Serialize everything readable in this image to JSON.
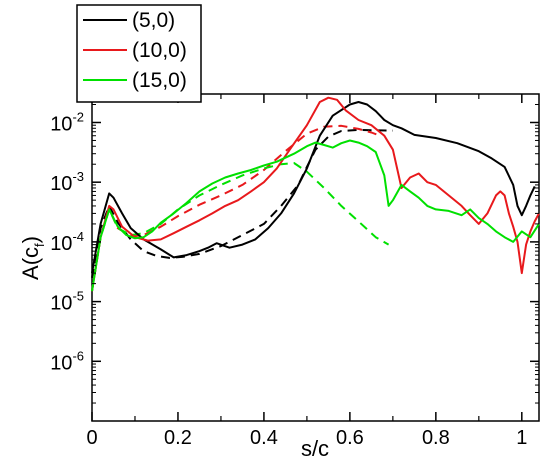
{
  "chart_data": {
    "type": "line",
    "title": "",
    "xlabel": "s/c",
    "ylabel_base": "A(c",
    "ylabel_sub": "f",
    "ylabel_close": ")",
    "y_scale": "log",
    "xlim": [
      0,
      1.04
    ],
    "ylim": [
      1e-07,
      0.03
    ],
    "x_ticks": [
      {
        "value": 0,
        "label": "0"
      },
      {
        "value": 0.2,
        "label": "0.2"
      },
      {
        "value": 0.4,
        "label": "0.4"
      },
      {
        "value": 0.6,
        "label": "0.6"
      },
      {
        "value": 0.8,
        "label": "0.8"
      },
      {
        "value": 1,
        "label": "1"
      }
    ],
    "y_ticks": [
      {
        "value": 1e-06,
        "base": "10",
        "exp": "-6"
      },
      {
        "value": 1e-05,
        "base": "10",
        "exp": "-5"
      },
      {
        "value": 0.0001,
        "base": "10",
        "exp": "-4"
      },
      {
        "value": 0.001,
        "base": "10",
        "exp": "-3"
      },
      {
        "value": 0.01,
        "base": "10",
        "exp": "-2"
      }
    ],
    "legend_position": "top-left, outside plot",
    "series": [
      {
        "name": "(5,0)",
        "color": "#000000",
        "dash": "solid",
        "in_legend": true,
        "x": [
          0,
          0.02,
          0.04,
          0.05,
          0.07,
          0.09,
          0.12,
          0.16,
          0.19,
          0.22,
          0.25,
          0.27,
          0.29,
          0.32,
          0.35,
          0.38,
          0.41,
          0.44,
          0.47,
          0.5,
          0.53,
          0.56,
          0.6,
          0.62,
          0.64,
          0.66,
          0.68,
          0.7,
          0.72,
          0.75,
          0.8,
          0.85,
          0.9,
          0.93,
          0.96,
          0.98,
          0.99,
          1.0,
          1.01,
          1.02,
          1.03
        ],
        "y": [
          3e-05,
          0.0002,
          0.00065,
          0.00055,
          0.0003,
          0.00017,
          0.00011,
          7.5e-05,
          5.5e-05,
          6e-05,
          7e-05,
          8e-05,
          9.5e-05,
          8e-05,
          9e-05,
          0.00011,
          0.00017,
          0.0003,
          0.00065,
          0.0017,
          0.006,
          0.013,
          0.02,
          0.022,
          0.02,
          0.0155,
          0.011,
          0.009,
          0.008,
          0.0062,
          0.0055,
          0.0045,
          0.0033,
          0.0025,
          0.0018,
          0.0009,
          0.0004,
          0.00028,
          0.0004,
          0.0006,
          0.00085
        ]
      },
      {
        "name": "(10,0)",
        "color": "#e8191c",
        "dash": "solid",
        "in_legend": true,
        "x": [
          0,
          0.02,
          0.04,
          0.05,
          0.07,
          0.1,
          0.13,
          0.16,
          0.19,
          0.22,
          0.25,
          0.28,
          0.31,
          0.34,
          0.37,
          0.4,
          0.43,
          0.46,
          0.5,
          0.53,
          0.55,
          0.57,
          0.59,
          0.62,
          0.65,
          0.68,
          0.7,
          0.72,
          0.74,
          0.76,
          0.78,
          0.8,
          0.83,
          0.86,
          0.88,
          0.9,
          0.92,
          0.94,
          0.95,
          0.96,
          0.97,
          0.98,
          0.99,
          1.0,
          1.01,
          1.02,
          1.03,
          1.04
        ],
        "y": [
          1.5e-05,
          0.00012,
          0.0004,
          0.00035,
          0.00018,
          0.00012,
          0.000105,
          0.00011,
          0.00014,
          0.00018,
          0.00023,
          0.0003,
          0.0004,
          0.0005,
          0.0007,
          0.001,
          0.0017,
          0.0035,
          0.009,
          0.022,
          0.026,
          0.024,
          0.016,
          0.011,
          0.009,
          0.006,
          0.0035,
          0.0008,
          0.0012,
          0.0014,
          0.001,
          0.0009,
          0.0006,
          0.0004,
          0.00028,
          0.0002,
          0.0003,
          0.0006,
          0.0007,
          0.0006,
          0.0003,
          0.00018,
          0.0001,
          3e-05,
          9e-05,
          0.00015,
          0.00022,
          0.0003
        ]
      },
      {
        "name": "(15,0)",
        "color": "#00e000",
        "dash": "solid",
        "in_legend": true,
        "x": [
          0,
          0.02,
          0.04,
          0.06,
          0.08,
          0.1,
          0.12,
          0.14,
          0.16,
          0.19,
          0.22,
          0.25,
          0.28,
          0.31,
          0.34,
          0.37,
          0.4,
          0.43,
          0.47,
          0.5,
          0.52,
          0.54,
          0.56,
          0.58,
          0.6,
          0.62,
          0.64,
          0.66,
          0.68,
          0.69,
          0.7,
          0.72,
          0.74,
          0.76,
          0.78,
          0.8,
          0.83,
          0.86,
          0.88,
          0.9,
          0.92,
          0.94,
          0.96,
          0.98,
          1.0,
          1.02,
          1.04
        ],
        "y": [
          1.5e-05,
          0.00012,
          0.00035,
          0.00018,
          0.00013,
          0.000115,
          0.00012,
          0.00015,
          0.00021,
          0.0003,
          0.00045,
          0.0007,
          0.00095,
          0.0012,
          0.0014,
          0.0016,
          0.0019,
          0.0022,
          0.003,
          0.004,
          0.0046,
          0.0042,
          0.0038,
          0.0045,
          0.005,
          0.0046,
          0.004,
          0.0032,
          0.0013,
          0.0004,
          0.0005,
          0.0009,
          0.0007,
          0.00055,
          0.0004,
          0.00035,
          0.00033,
          0.00028,
          0.00035,
          0.00025,
          0.0002,
          0.00015,
          0.00012,
          0.0001,
          0.00015,
          0.00012,
          0.0002
        ]
      },
      {
        "name": "",
        "color": "#000000",
        "dash": "dashed",
        "in_legend": false,
        "x": [
          0,
          0.02,
          0.04,
          0.06,
          0.09,
          0.12,
          0.15,
          0.18,
          0.21,
          0.25,
          0.3,
          0.35,
          0.4,
          0.44,
          0.48,
          0.5,
          0.52,
          0.55,
          0.58,
          0.62,
          0.66,
          0.7
        ],
        "y": [
          2.5e-05,
          0.00017,
          0.0004,
          0.00021,
          0.00011,
          7e-05,
          5.8e-05,
          5.4e-05,
          5.6e-05,
          6.3e-05,
          8.5e-05,
          0.00013,
          0.0002,
          0.0004,
          0.0009,
          0.0018,
          0.0035,
          0.0058,
          0.0072,
          0.0075,
          0.0074,
          0.0073
        ]
      },
      {
        "name": "",
        "color": "#e8191c",
        "dash": "dashed",
        "in_legend": false,
        "x": [
          0,
          0.02,
          0.04,
          0.06,
          0.09,
          0.12,
          0.16,
          0.2,
          0.25,
          0.3,
          0.35,
          0.4,
          0.45,
          0.5,
          0.54,
          0.58,
          0.62,
          0.65,
          0.67
        ],
        "y": [
          1.5e-05,
          0.00012,
          0.00036,
          0.00017,
          0.000125,
          0.00013,
          0.00018,
          0.00027,
          0.00042,
          0.0006,
          0.0009,
          0.0016,
          0.0033,
          0.0065,
          0.0085,
          0.0088,
          0.0078,
          0.0068,
          0.006
        ]
      },
      {
        "name": "",
        "color": "#00e000",
        "dash": "dashed",
        "in_legend": false,
        "x": [
          0,
          0.02,
          0.04,
          0.06,
          0.09,
          0.12,
          0.16,
          0.2,
          0.25,
          0.3,
          0.35,
          0.4,
          0.44,
          0.47,
          0.5,
          0.54,
          0.58,
          0.62,
          0.66,
          0.69
        ],
        "y": [
          1.5e-05,
          0.00012,
          0.00035,
          0.00017,
          0.00013,
          0.00014,
          0.0002,
          0.00035,
          0.0006,
          0.0009,
          0.0013,
          0.0017,
          0.002,
          0.0021,
          0.0015,
          0.0008,
          0.0004,
          0.00022,
          0.00012,
          9e-05
        ]
      }
    ]
  }
}
